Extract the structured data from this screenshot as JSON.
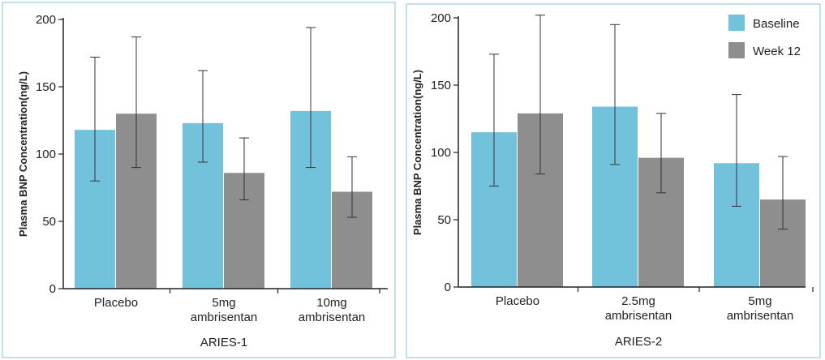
{
  "colors": {
    "baseline": "#73c2dc",
    "week12": "#8e8e8e"
  },
  "legend": [
    {
      "label": "Baseline",
      "color": "#73c2dc"
    },
    {
      "label": "Week 12",
      "color": "#8e8e8e"
    }
  ],
  "chart_data": [
    {
      "type": "bar",
      "title": "ARIES-1",
      "ylabel": "Plasma BNP Concentration(ng/L)",
      "ylim": [
        0,
        200
      ],
      "yticks": [
        0,
        50,
        100,
        150,
        200
      ],
      "categories": [
        [
          "Placebo"
        ],
        [
          "5mg",
          "ambrisentan"
        ],
        [
          "10mg",
          "ambrisentan"
        ]
      ],
      "series": [
        {
          "name": "Baseline",
          "values": [
            118,
            123,
            132
          ],
          "err_low": [
            80,
            94,
            90
          ],
          "err_high": [
            172,
            162,
            194
          ]
        },
        {
          "name": "Week 12",
          "values": [
            130,
            86,
            72
          ],
          "err_low": [
            90,
            66,
            53
          ],
          "err_high": [
            187,
            112,
            98
          ]
        }
      ]
    },
    {
      "type": "bar",
      "title": "ARIES-2",
      "ylabel": "Plasma BNP Concentration(ng/L)",
      "ylim": [
        0,
        200
      ],
      "yticks": [
        0,
        50,
        100,
        150,
        200
      ],
      "categories": [
        [
          "Placebo"
        ],
        [
          "2.5mg",
          "ambrisentan"
        ],
        [
          "5mg",
          "ambrisentan"
        ]
      ],
      "series": [
        {
          "name": "Baseline",
          "values": [
            115,
            134,
            92
          ],
          "err_low": [
            75,
            91,
            60
          ],
          "err_high": [
            173,
            195,
            143
          ]
        },
        {
          "name": "Week 12",
          "values": [
            129,
            96,
            65
          ],
          "err_low": [
            84,
            70,
            43
          ],
          "err_high": [
            202,
            129,
            97
          ]
        }
      ]
    }
  ]
}
